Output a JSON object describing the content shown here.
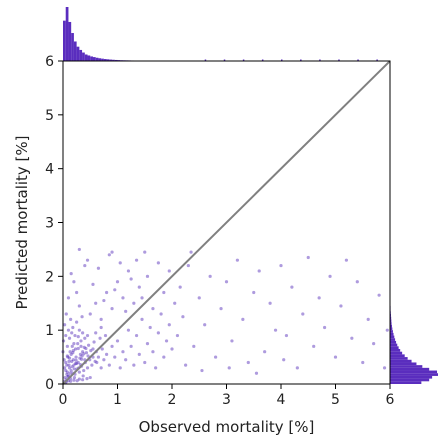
{
  "chart_data": {
    "type": "scatter",
    "title": "",
    "xlabel": "Observed mortality [%]",
    "ylabel": "Predicted mortality [%]",
    "xlim": [
      0,
      6
    ],
    "ylim": [
      0,
      6
    ],
    "xticks": [
      0,
      1,
      2,
      3,
      4,
      5,
      6
    ],
    "yticks": [
      0,
      1,
      2,
      3,
      4,
      5,
      6
    ],
    "grid": false,
    "reference_line": {
      "from": [
        0,
        0
      ],
      "to": [
        6,
        6
      ],
      "color": "#808080"
    },
    "point_color": "#4B22B5",
    "hist_color": "#5A2DBE",
    "marginal_x_hist": {
      "bin_edges_start": 0,
      "bin_width": 0.05,
      "counts": [
        620,
        830,
        600,
        430,
        300,
        220,
        170,
        130,
        100,
        85,
        70,
        60,
        50,
        42,
        36,
        30,
        26,
        22,
        19,
        16,
        14,
        12,
        11,
        10,
        9,
        8,
        7,
        6,
        6,
        5,
        5,
        4,
        4,
        3,
        3,
        3,
        2,
        2,
        2,
        2,
        2,
        2,
        1,
        1,
        1,
        1,
        1,
        1,
        1,
        1
      ]
    },
    "marginal_y_hist": {
      "bin_edges_start": 0,
      "bin_width": 0.05,
      "counts": [
        160,
        200,
        215,
        245,
        240,
        200,
        165,
        135,
        110,
        90,
        75,
        62,
        52,
        44,
        37,
        31,
        26,
        22,
        18,
        15,
        12,
        10,
        8,
        7,
        6,
        5,
        4,
        3,
        3,
        2,
        2,
        2,
        1,
        1,
        1,
        1,
        1,
        1,
        1,
        1,
        1,
        1,
        1,
        1,
        1,
        1
      ]
    },
    "points": [
      [
        0.02,
        0.05
      ],
      [
        0.04,
        0.12
      ],
      [
        0.06,
        0.08
      ],
      [
        0.08,
        0.22
      ],
      [
        0.1,
        0.15
      ],
      [
        0.12,
        0.3
      ],
      [
        0.14,
        0.1
      ],
      [
        0.16,
        0.42
      ],
      [
        0.18,
        0.2
      ],
      [
        0.2,
        0.35
      ],
      [
        0.22,
        0.18
      ],
      [
        0.24,
        0.5
      ],
      [
        0.26,
        0.28
      ],
      [
        0.28,
        0.4
      ],
      [
        0.3,
        0.22
      ],
      [
        0.32,
        0.55
      ],
      [
        0.34,
        0.33
      ],
      [
        0.36,
        0.6
      ],
      [
        0.38,
        0.25
      ],
      [
        0.4,
        0.45
      ],
      [
        0.03,
        0.3
      ],
      [
        0.05,
        0.4
      ],
      [
        0.07,
        0.18
      ],
      [
        0.09,
        0.5
      ],
      [
        0.11,
        0.35
      ],
      [
        0.13,
        0.6
      ],
      [
        0.15,
        0.25
      ],
      [
        0.17,
        0.7
      ],
      [
        0.19,
        0.45
      ],
      [
        0.21,
        0.12
      ],
      [
        0.23,
        0.65
      ],
      [
        0.25,
        0.38
      ],
      [
        0.27,
        0.75
      ],
      [
        0.29,
        0.3
      ],
      [
        0.31,
        0.48
      ],
      [
        0.33,
        0.8
      ],
      [
        0.35,
        0.52
      ],
      [
        0.37,
        0.15
      ],
      [
        0.39,
        0.68
      ],
      [
        0.41,
        0.4
      ],
      [
        0.43,
        0.58
      ],
      [
        0.45,
        0.3
      ],
      [
        0.47,
        0.72
      ],
      [
        0.49,
        0.45
      ],
      [
        0.51,
        0.62
      ],
      [
        0.53,
        0.35
      ],
      [
        0.55,
        0.5
      ],
      [
        0.57,
        0.78
      ],
      [
        0.59,
        0.42
      ],
      [
        0.61,
        0.6
      ],
      [
        0.0,
        0.6
      ],
      [
        0.01,
        0.8
      ],
      [
        0.02,
        0.45
      ],
      [
        0.03,
        1.1
      ],
      [
        0.05,
        0.9
      ],
      [
        0.06,
        1.3
      ],
      [
        0.08,
        0.7
      ],
      [
        0.1,
        1.0
      ],
      [
        0.12,
        0.85
      ],
      [
        0.14,
        1.2
      ],
      [
        0.16,
        0.95
      ],
      [
        0.18,
        1.05
      ],
      [
        0.2,
        0.75
      ],
      [
        0.22,
        0.9
      ],
      [
        0.25,
        1.15
      ],
      [
        0.28,
        0.88
      ],
      [
        0.3,
        1.0
      ],
      [
        0.33,
        0.7
      ],
      [
        0.36,
        0.95
      ],
      [
        0.4,
        0.85
      ],
      [
        0.65,
        0.5
      ],
      [
        0.7,
        0.3
      ],
      [
        0.72,
        0.65
      ],
      [
        0.75,
        0.45
      ],
      [
        0.78,
        0.9
      ],
      [
        0.8,
        0.55
      ],
      [
        0.85,
        0.35
      ],
      [
        0.9,
        0.7
      ],
      [
        0.95,
        0.5
      ],
      [
        1.0,
        0.8
      ],
      [
        1.05,
        0.3
      ],
      [
        1.1,
        0.6
      ],
      [
        1.15,
        0.45
      ],
      [
        1.2,
        1.0
      ],
      [
        1.25,
        0.7
      ],
      [
        1.3,
        0.35
      ],
      [
        1.35,
        0.9
      ],
      [
        1.4,
        0.55
      ],
      [
        1.45,
        1.2
      ],
      [
        1.5,
        0.4
      ],
      [
        1.55,
        0.75
      ],
      [
        1.6,
        1.05
      ],
      [
        1.65,
        0.6
      ],
      [
        1.7,
        0.3
      ],
      [
        1.75,
        0.95
      ],
      [
        1.8,
        1.3
      ],
      [
        1.85,
        0.5
      ],
      [
        1.9,
        0.8
      ],
      [
        1.95,
        1.1
      ],
      [
        2.0,
        0.65
      ],
      [
        0.5,
        1.3
      ],
      [
        0.6,
        1.5
      ],
      [
        0.7,
        1.2
      ],
      [
        0.8,
        1.7
      ],
      [
        0.9,
        1.4
      ],
      [
        1.0,
        1.9
      ],
      [
        1.1,
        1.6
      ],
      [
        1.2,
        2.1
      ],
      [
        1.3,
        1.5
      ],
      [
        1.4,
        1.8
      ],
      [
        0.1,
        1.6
      ],
      [
        0.2,
        1.9
      ],
      [
        0.3,
        1.45
      ],
      [
        0.4,
        2.2
      ],
      [
        0.15,
        2.05
      ],
      [
        0.25,
        1.7
      ],
      [
        0.35,
        1.25
      ],
      [
        0.45,
        2.3
      ],
      [
        0.55,
        1.85
      ],
      [
        0.65,
        2.15
      ],
      [
        0.75,
        1.55
      ],
      [
        0.85,
        2.4
      ],
      [
        0.95,
        1.75
      ],
      [
        1.05,
        2.25
      ],
      [
        1.15,
        1.35
      ],
      [
        1.25,
        1.95
      ],
      [
        1.35,
        2.3
      ],
      [
        1.45,
        1.6
      ],
      [
        1.55,
        2.0
      ],
      [
        1.65,
        1.4
      ],
      [
        1.75,
        2.25
      ],
      [
        1.85,
        1.7
      ],
      [
        1.95,
        2.1
      ],
      [
        2.05,
        1.5
      ],
      [
        2.1,
        0.9
      ],
      [
        2.15,
        1.8
      ],
      [
        2.2,
        1.25
      ],
      [
        2.3,
        2.2
      ],
      [
        2.4,
        0.7
      ],
      [
        2.5,
        1.6
      ],
      [
        2.6,
        1.1
      ],
      [
        2.7,
        2.0
      ],
      [
        2.8,
        0.5
      ],
      [
        2.9,
        1.4
      ],
      [
        3.0,
        1.9
      ],
      [
        3.1,
        0.8
      ],
      [
        3.2,
        2.3
      ],
      [
        3.3,
        1.2
      ],
      [
        3.4,
        0.4
      ],
      [
        3.5,
        1.7
      ],
      [
        3.6,
        2.1
      ],
      [
        3.7,
        0.6
      ],
      [
        3.8,
        1.5
      ],
      [
        3.9,
        1.0
      ],
      [
        4.0,
        2.2
      ],
      [
        4.1,
        0.9
      ],
      [
        4.2,
        1.8
      ],
      [
        4.3,
        0.3
      ],
      [
        4.4,
        1.3
      ],
      [
        4.5,
        2.35
      ],
      [
        4.6,
        0.7
      ],
      [
        4.7,
        1.6
      ],
      [
        4.8,
        1.05
      ],
      [
        4.9,
        2.0
      ],
      [
        5.0,
        0.5
      ],
      [
        5.1,
        1.45
      ],
      [
        5.2,
        2.3
      ],
      [
        5.3,
        0.85
      ],
      [
        5.4,
        1.9
      ],
      [
        5.5,
        0.4
      ],
      [
        5.6,
        1.2
      ],
      [
        5.7,
        0.75
      ],
      [
        5.8,
        1.65
      ],
      [
        5.9,
        0.3
      ],
      [
        5.95,
        1.0
      ],
      [
        2.25,
        0.35
      ],
      [
        2.55,
        0.25
      ],
      [
        3.05,
        0.3
      ],
      [
        3.55,
        0.2
      ],
      [
        4.05,
        0.45
      ],
      [
        2.35,
        2.45
      ],
      [
        1.5,
        2.45
      ],
      [
        0.9,
        2.45
      ],
      [
        0.3,
        2.5
      ],
      [
        0.6,
        0.95
      ],
      [
        0.7,
        1.05
      ],
      [
        0.45,
        0.9
      ],
      [
        0.55,
        0.65
      ],
      [
        0.62,
        0.4
      ],
      [
        0.68,
        0.85
      ],
      [
        0.05,
        0.25
      ],
      [
        0.07,
        0.35
      ],
      [
        0.09,
        0.14
      ],
      [
        0.11,
        0.42
      ],
      [
        0.13,
        0.2
      ],
      [
        0.15,
        0.55
      ],
      [
        0.17,
        0.32
      ],
      [
        0.19,
        0.62
      ],
      [
        0.21,
        0.28
      ],
      [
        0.23,
        0.38
      ],
      [
        0.08,
        0.52
      ],
      [
        0.12,
        0.48
      ],
      [
        0.18,
        0.58
      ],
      [
        0.24,
        0.44
      ],
      [
        0.28,
        0.66
      ],
      [
        0.32,
        0.36
      ],
      [
        0.34,
        0.46
      ],
      [
        0.38,
        0.56
      ],
      [
        0.42,
        0.66
      ],
      [
        0.46,
        0.52
      ],
      [
        0.04,
        0.02
      ],
      [
        0.06,
        0.04
      ],
      [
        0.1,
        0.06
      ],
      [
        0.14,
        0.05
      ],
      [
        0.2,
        0.07
      ],
      [
        0.26,
        0.06
      ],
      [
        0.3,
        0.09
      ],
      [
        0.36,
        0.08
      ],
      [
        0.44,
        0.1
      ],
      [
        0.5,
        0.12
      ]
    ]
  }
}
